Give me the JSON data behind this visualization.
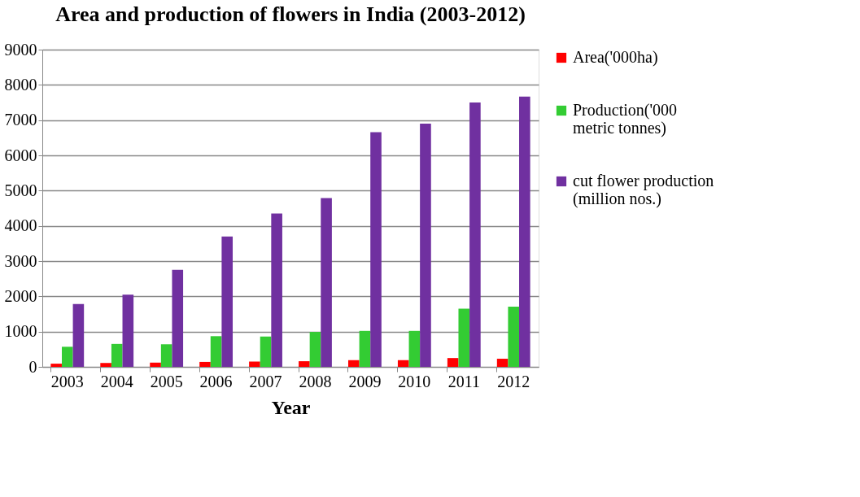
{
  "chart_data": {
    "type": "bar",
    "title": "Area and production of flowers in India (2003-2012)",
    "xlabel": "Year",
    "categories": [
      "2003",
      "2004",
      "2005",
      "2006",
      "2007",
      "2008",
      "2009",
      "2010",
      "2011",
      "2012"
    ],
    "series": [
      {
        "name": "Area('000ha)",
        "color": "#ff0000",
        "values": [
          90,
          110,
          120,
          140,
          150,
          160,
          190,
          190,
          250,
          230
        ]
      },
      {
        "name": "Production('000 metric tonnes)",
        "color": "#33cc33",
        "values": [
          570,
          650,
          640,
          870,
          860,
          990,
          1020,
          1020,
          1650,
          1710
        ]
      },
      {
        "name": "cut flower production (million nos.)",
        "color": "#7030a0",
        "values": [
          1780,
          2050,
          2750,
          3700,
          4350,
          4790,
          6660,
          6900,
          7500,
          7670
        ]
      }
    ],
    "ylim": [
      0,
      9000
    ],
    "yticks": [
      0,
      1000,
      2000,
      3000,
      4000,
      5000,
      6000,
      7000,
      8000,
      9000
    ],
    "grid": "y",
    "legend": "right"
  }
}
